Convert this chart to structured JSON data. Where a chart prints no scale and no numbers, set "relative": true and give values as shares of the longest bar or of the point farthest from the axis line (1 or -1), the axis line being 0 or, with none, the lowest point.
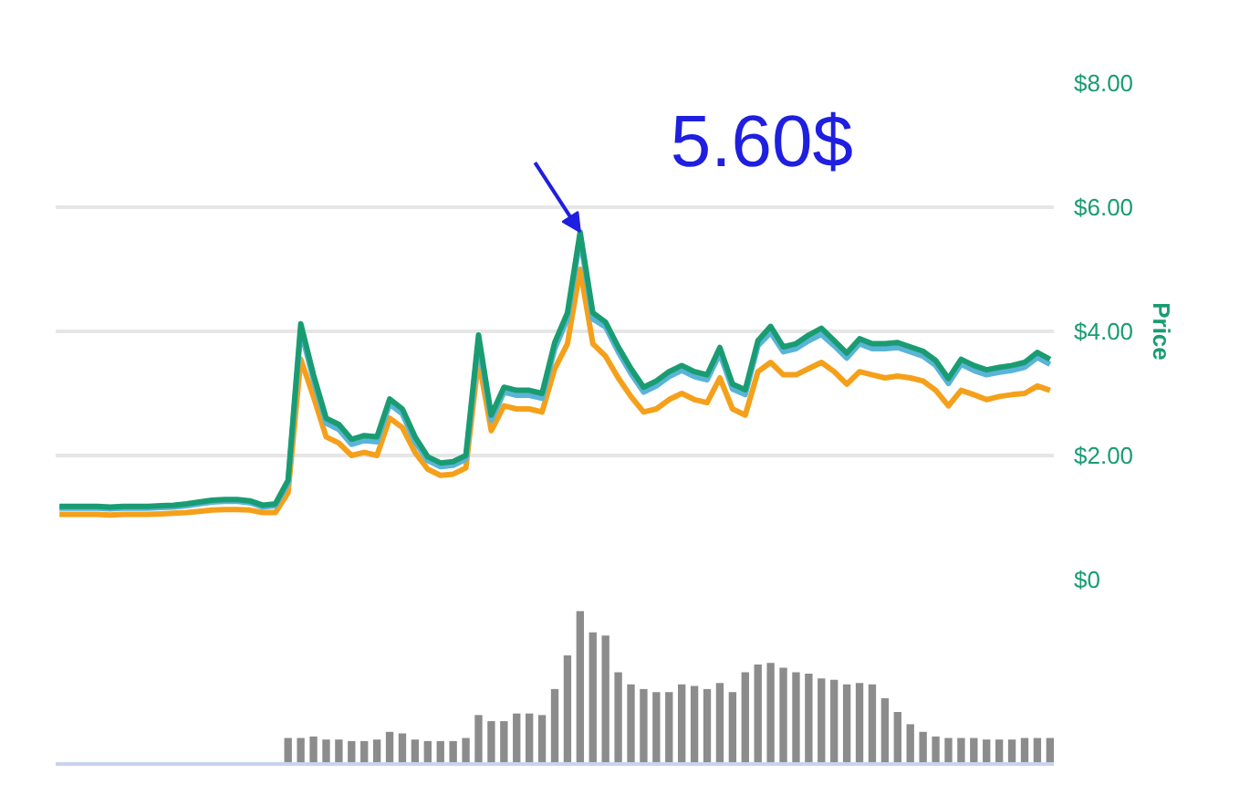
{
  "chart_data": [
    {
      "type": "line",
      "ylabel": "Price",
      "categories": [
        null,
        null,
        null,
        null,
        null,
        null,
        null,
        null,
        null,
        null,
        null,
        null,
        null,
        null,
        null,
        null,
        null,
        null,
        null,
        null,
        null,
        null,
        null,
        null,
        null,
        null,
        null,
        null,
        null,
        null,
        null,
        null,
        null,
        null,
        null,
        null,
        null,
        null,
        null,
        null,
        null,
        null,
        null,
        null,
        null,
        null,
        null,
        null,
        null,
        null,
        null,
        null,
        null,
        null,
        null,
        null,
        null,
        null,
        null,
        null,
        null,
        null,
        null,
        null,
        null,
        null,
        null,
        null,
        null,
        null,
        null,
        null,
        null,
        null,
        null,
        null,
        null,
        null,
        null
      ],
      "series": [
        {
          "color": "#f5a01a",
          "values": [
            1.05,
            1.05,
            1.05,
            1.05,
            1.04,
            1.05,
            1.05,
            1.05,
            1.06,
            1.07,
            1.08,
            1.1,
            1.12,
            1.13,
            1.13,
            1.12,
            1.08,
            1.08,
            1.4,
            3.55,
            2.95,
            2.3,
            2.2,
            2.0,
            2.05,
            2.0,
            2.6,
            2.45,
            2.05,
            1.78,
            1.68,
            1.7,
            1.8,
            3.55,
            2.4,
            2.8,
            2.75,
            2.75,
            2.7,
            3.4,
            3.8,
            5.0,
            3.8,
            3.6,
            3.25,
            2.95,
            2.7,
            2.75,
            2.9,
            3.0,
            2.9,
            2.85,
            3.25,
            2.75,
            2.65,
            3.35,
            3.5,
            3.3,
            3.3,
            3.4,
            3.5,
            3.35,
            3.15,
            3.35,
            3.3,
            3.25,
            3.28,
            3.25,
            3.2,
            3.05,
            2.8,
            3.05,
            2.98,
            2.9,
            2.95,
            2.98,
            3.0,
            3.12,
            3.05
          ]
        },
        {
          "color": "#5ab4d8",
          "values": [
            1.15,
            1.15,
            1.15,
            1.15,
            1.14,
            1.15,
            1.15,
            1.15,
            1.16,
            1.17,
            1.19,
            1.22,
            1.25,
            1.26,
            1.26,
            1.24,
            1.17,
            1.19,
            1.55,
            4.02,
            3.22,
            2.52,
            2.42,
            2.18,
            2.24,
            2.22,
            2.83,
            2.67,
            2.22,
            1.92,
            1.82,
            1.84,
            1.94,
            3.84,
            2.57,
            3.02,
            2.97,
            2.97,
            2.92,
            3.72,
            4.2,
            5.5,
            4.2,
            4.07,
            3.67,
            3.32,
            3.02,
            3.12,
            3.27,
            3.37,
            3.27,
            3.22,
            3.64,
            3.07,
            2.98,
            3.77,
            3.98,
            3.67,
            3.72,
            3.85,
            3.95,
            3.77,
            3.57,
            3.8,
            3.72,
            3.72,
            3.74,
            3.67,
            3.6,
            3.45,
            3.16,
            3.47,
            3.37,
            3.3,
            3.34,
            3.37,
            3.42,
            3.58,
            3.47
          ]
        },
        {
          "color": "#1a9c72",
          "values": [
            1.18,
            1.18,
            1.18,
            1.18,
            1.17,
            1.18,
            1.18,
            1.18,
            1.19,
            1.2,
            1.22,
            1.25,
            1.28,
            1.29,
            1.29,
            1.27,
            1.2,
            1.22,
            1.6,
            4.12,
            3.3,
            2.6,
            2.5,
            2.26,
            2.32,
            2.3,
            2.91,
            2.75,
            2.3,
            1.98,
            1.88,
            1.9,
            2.0,
            3.94,
            2.65,
            3.1,
            3.05,
            3.05,
            3.0,
            3.82,
            4.3,
            5.6,
            4.3,
            4.15,
            3.75,
            3.4,
            3.1,
            3.2,
            3.35,
            3.45,
            3.35,
            3.3,
            3.74,
            3.15,
            3.06,
            3.85,
            4.08,
            3.75,
            3.8,
            3.94,
            4.05,
            3.85,
            3.65,
            3.88,
            3.8,
            3.8,
            3.82,
            3.75,
            3.68,
            3.53,
            3.24,
            3.55,
            3.45,
            3.38,
            3.42,
            3.45,
            3.5,
            3.66,
            3.55
          ]
        }
      ],
      "ylim": [
        0,
        8
      ],
      "yticks": [
        {
          "value": 0,
          "label": "$0"
        },
        {
          "value": 2,
          "label": "$2.00"
        },
        {
          "value": 4,
          "label": "$4.00"
        },
        {
          "value": 6,
          "label": "$6.00"
        },
        {
          "value": 8,
          "label": "$8.00"
        }
      ],
      "grid": "y",
      "line_style": "solid",
      "annotations": [
        "5.60$"
      ]
    },
    {
      "type": "bar",
      "relative": true,
      "color": "#8c8c8c",
      "categories": [
        null,
        null,
        null,
        null,
        null,
        null,
        null,
        null,
        null,
        null,
        null,
        null,
        null,
        null,
        null,
        null,
        null,
        null,
        null,
        null,
        null,
        null,
        null,
        null,
        null,
        null,
        null,
        null,
        null,
        null,
        null,
        null,
        null,
        null,
        null,
        null,
        null,
        null,
        null,
        null,
        null,
        null,
        null,
        null,
        null,
        null,
        null,
        null,
        null,
        null,
        null,
        null,
        null,
        null,
        null,
        null,
        null,
        null,
        null,
        null,
        null
      ],
      "values": [
        0.17,
        0.17,
        0.18,
        0.16,
        0.16,
        0.15,
        0.15,
        0.16,
        0.21,
        0.2,
        0.16,
        0.15,
        0.15,
        0.15,
        0.17,
        0.32,
        0.28,
        0.28,
        0.33,
        0.33,
        0.32,
        0.49,
        0.71,
        1.0,
        0.86,
        0.84,
        0.6,
        0.52,
        0.49,
        0.47,
        0.47,
        0.52,
        0.51,
        0.49,
        0.53,
        0.47,
        0.6,
        0.65,
        0.66,
        0.63,
        0.6,
        0.59,
        0.56,
        0.55,
        0.52,
        0.53,
        0.52,
        0.43,
        0.34,
        0.26,
        0.21,
        0.18,
        0.17,
        0.17,
        0.17,
        0.16,
        0.16,
        0.16,
        0.17,
        0.17,
        0.17
      ]
    }
  ]
}
